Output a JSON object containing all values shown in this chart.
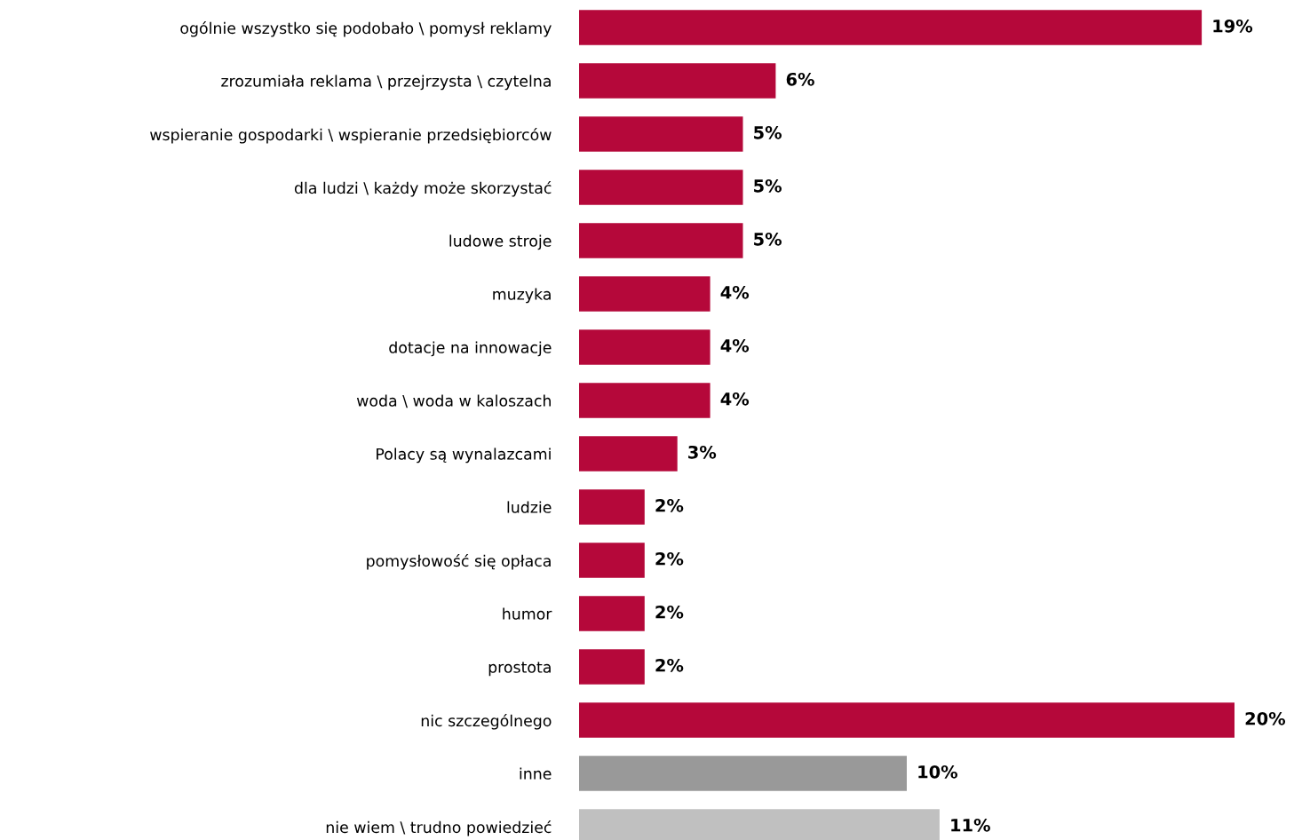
{
  "chart_data": {
    "type": "bar",
    "orientation": "horizontal",
    "data_labels": true,
    "grid": false,
    "legend": false,
    "categories": [
      "ogólnie wszystko się podobało \\ pomysł reklamy",
      "zrozumiała reklama \\ przejrzysta \\ czytelna",
      "wspieranie gospodarki \\ wspieranie przedsiębiorców",
      "dla ludzi \\ każdy może skorzystać",
      "ludowe stroje",
      "muzyka",
      "dotacje na innowacje",
      "woda \\ woda w kaloszach",
      "Polacy są wynalazcami",
      "ludzie",
      "pomysłowość się opłaca",
      "humor",
      "prostota",
      "nic szczególnego",
      "inne",
      "nie wiem \\ trudno powiedzieć"
    ],
    "values": [
      19,
      6,
      5,
      5,
      5,
      4,
      4,
      4,
      3,
      2,
      2,
      2,
      2,
      20,
      10,
      11
    ],
    "value_labels": [
      "19%",
      "6%",
      "5%",
      "5%",
      "5%",
      "4%",
      "4%",
      "4%",
      "3%",
      "2%",
      "2%",
      "2%",
      "2%",
      "20%",
      "10%",
      "11%"
    ],
    "colors": [
      "#b5083a",
      "#b5083a",
      "#b5083a",
      "#b5083a",
      "#b5083a",
      "#b5083a",
      "#b5083a",
      "#b5083a",
      "#b5083a",
      "#b5083a",
      "#b5083a",
      "#b5083a",
      "#b5083a",
      "#b5083a",
      "#999999",
      "#c0c0c0"
    ]
  }
}
